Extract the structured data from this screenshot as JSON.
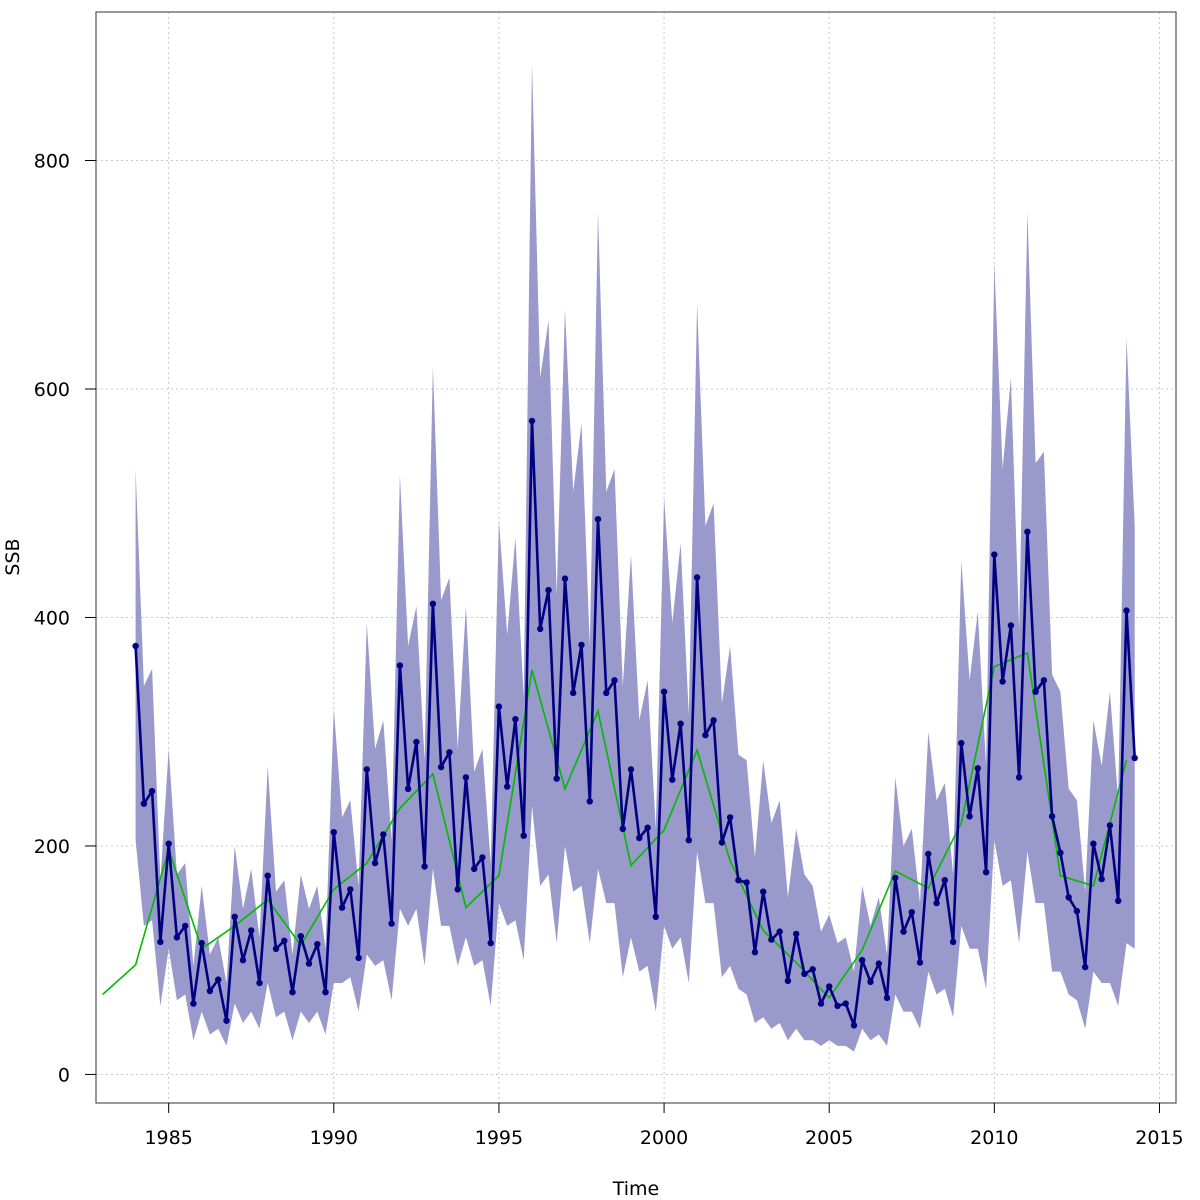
{
  "chart_data": {
    "type": "line",
    "title": "",
    "xlabel": "Time",
    "ylabel": "SSB",
    "xlim": [
      1982.8,
      2015.5
    ],
    "ylim": [
      -25,
      930
    ],
    "grid": true,
    "legend": "none",
    "x_ticks": [
      "1985",
      "1990",
      "1995",
      "2000",
      "2005",
      "2010",
      "2015"
    ],
    "y_ticks": [
      "0",
      "200",
      "400",
      "600",
      "800"
    ],
    "colors": {
      "estimate": "#000080",
      "band": "#9999cc",
      "annual": "#00bb00",
      "grid": "#c8c8c8",
      "frame": "#555555"
    },
    "series": [
      {
        "kind": "confidence-band",
        "x": [
          1984.0,
          1984.25,
          1984.5,
          1984.75,
          1985.0,
          1985.25,
          1985.5,
          1985.75,
          1986.0,
          1986.25,
          1986.5,
          1986.75,
          1987.0,
          1987.25,
          1987.5,
          1987.75,
          1988.0,
          1988.25,
          1988.5,
          1988.75,
          1989.0,
          1989.25,
          1989.5,
          1989.75,
          1990.0,
          1990.25,
          1990.5,
          1990.75,
          1991.0,
          1991.25,
          1991.5,
          1991.75,
          1992.0,
          1992.25,
          1992.5,
          1992.75,
          1993.0,
          1993.25,
          1993.5,
          1993.75,
          1994.0,
          1994.25,
          1994.5,
          1994.75,
          1995.0,
          1995.25,
          1995.5,
          1995.75,
          1996.0,
          1996.25,
          1996.5,
          1996.75,
          1997.0,
          1997.25,
          1997.5,
          1997.75,
          1998.0,
          1998.25,
          1998.5,
          1998.75,
          1999.0,
          1999.25,
          1999.5,
          1999.75,
          2000.0,
          2000.25,
          2000.5,
          2000.75,
          2001.0,
          2001.25,
          2001.5,
          2001.75,
          2002.0,
          2002.25,
          2002.5,
          2002.75,
          2003.0,
          2003.25,
          2003.5,
          2003.75,
          2004.0,
          2004.25,
          2004.5,
          2004.75,
          2005.0,
          2005.25,
          2005.5,
          2005.75,
          2006.0,
          2006.25,
          2006.5,
          2006.75,
          2007.0,
          2007.25,
          2007.5,
          2007.75,
          2008.0,
          2008.25,
          2008.5,
          2008.75,
          2009.0,
          2009.25,
          2009.5,
          2009.75,
          2010.0,
          2010.25,
          2010.5,
          2010.75,
          2011.0,
          2011.25,
          2011.5,
          2011.75,
          2012.0,
          2012.25,
          2012.5,
          2012.75,
          2013.0,
          2013.25,
          2013.5,
          2013.75,
          2014.0,
          2014.25
        ],
        "lower": [
          205,
          130,
          135,
          60,
          110,
          65,
          70,
          30,
          55,
          35,
          40,
          25,
          62,
          45,
          55,
          40,
          80,
          50,
          55,
          30,
          55,
          45,
          55,
          35,
          80,
          80,
          85,
          55,
          105,
          95,
          100,
          65,
          145,
          130,
          145,
          95,
          180,
          130,
          130,
          95,
          120,
          95,
          100,
          60,
          150,
          130,
          135,
          100,
          235,
          165,
          175,
          115,
          200,
          160,
          165,
          115,
          180,
          150,
          150,
          85,
          120,
          90,
          95,
          55,
          130,
          110,
          120,
          80,
          195,
          150,
          150,
          85,
          95,
          75,
          70,
          45,
          50,
          40,
          45,
          30,
          40,
          30,
          30,
          25,
          30,
          25,
          25,
          20,
          40,
          30,
          35,
          25,
          70,
          55,
          55,
          40,
          90,
          70,
          75,
          50,
          130,
          110,
          110,
          75,
          205,
          165,
          170,
          115,
          195,
          150,
          150,
          90,
          90,
          70,
          65,
          40,
          90,
          80,
          80,
          60,
          115,
          110
        ],
        "upper": [
          530,
          340,
          355,
          170,
          285,
          175,
          185,
          95,
          165,
          105,
          120,
          80,
          200,
          145,
          180,
          120,
          270,
          160,
          170,
          105,
          175,
          145,
          165,
          110,
          320,
          225,
          240,
          165,
          395,
          285,
          310,
          205,
          525,
          375,
          410,
          275,
          620,
          415,
          435,
          285,
          410,
          265,
          285,
          185,
          485,
          385,
          470,
          330,
          885,
          610,
          660,
          420,
          670,
          510,
          570,
          375,
          755,
          510,
          530,
          340,
          455,
          310,
          345,
          215,
          505,
          395,
          465,
          315,
          675,
          480,
          500,
          325,
          375,
          280,
          275,
          190,
          275,
          220,
          240,
          155,
          215,
          175,
          165,
          125,
          140,
          115,
          120,
          90,
          165,
          130,
          155,
          105,
          260,
          200,
          215,
          150,
          300,
          240,
          255,
          175,
          450,
          345,
          405,
          270,
          710,
          530,
          610,
          390,
          755,
          535,
          545,
          350,
          335,
          250,
          240,
          160,
          310,
          270,
          335,
          240,
          645,
          480
        ],
        "name": ""
      },
      {
        "kind": "quarterly-estimate",
        "x": [
          1984.0,
          1984.25,
          1984.5,
          1984.75,
          1985.0,
          1985.25,
          1985.5,
          1985.75,
          1986.0,
          1986.25,
          1986.5,
          1986.75,
          1987.0,
          1987.25,
          1987.5,
          1987.75,
          1988.0,
          1988.25,
          1988.5,
          1988.75,
          1989.0,
          1989.25,
          1989.5,
          1989.75,
          1990.0,
          1990.25,
          1990.5,
          1990.75,
          1991.0,
          1991.25,
          1991.5,
          1991.75,
          1992.0,
          1992.25,
          1992.5,
          1992.75,
          1993.0,
          1993.25,
          1993.5,
          1993.75,
          1994.0,
          1994.25,
          1994.5,
          1994.75,
          1995.0,
          1995.25,
          1995.5,
          1995.75,
          1996.0,
          1996.25,
          1996.5,
          1996.75,
          1997.0,
          1997.25,
          1997.5,
          1997.75,
          1998.0,
          1998.25,
          1998.5,
          1998.75,
          1999.0,
          1999.25,
          1999.5,
          1999.75,
          2000.0,
          2000.25,
          2000.5,
          2000.75,
          2001.0,
          2001.25,
          2001.5,
          2001.75,
          2002.0,
          2002.25,
          2002.5,
          2002.75,
          2003.0,
          2003.25,
          2003.5,
          2003.75,
          2004.0,
          2004.25,
          2004.5,
          2004.75,
          2005.0,
          2005.25,
          2005.5,
          2005.75,
          2006.0,
          2006.25,
          2006.5,
          2006.75,
          2007.0,
          2007.25,
          2007.5,
          2007.75,
          2008.0,
          2008.25,
          2008.5,
          2008.75,
          2009.0,
          2009.25,
          2009.5,
          2009.75,
          2010.0,
          2010.25,
          2010.5,
          2010.75,
          2011.0,
          2011.25,
          2011.5,
          2011.75,
          2012.0,
          2012.25,
          2012.5,
          2012.75,
          2013.0,
          2013.25,
          2013.5,
          2013.75,
          2014.0,
          2014.25
        ],
        "y": [
          375,
          237,
          248,
          116,
          202,
          120,
          130,
          62,
          115,
          73,
          83,
          47,
          138,
          100,
          126,
          80,
          174,
          110,
          117,
          72,
          121,
          97,
          114,
          72,
          212,
          146,
          162,
          102,
          267,
          185,
          210,
          132,
          358,
          250,
          291,
          182,
          412,
          269,
          282,
          162,
          260,
          180,
          190,
          115,
          322,
          252,
          311,
          209,
          572,
          390,
          424,
          259,
          434,
          334,
          376,
          239,
          486,
          334,
          345,
          215,
          267,
          207,
          216,
          138,
          335,
          258,
          307,
          205,
          435,
          297,
          310,
          203,
          225,
          170,
          168,
          107,
          160,
          118,
          125,
          82,
          123,
          88,
          92,
          62,
          77,
          60,
          62,
          43,
          100,
          81,
          97,
          67,
          172,
          125,
          142,
          98,
          193,
          150,
          170,
          116,
          290,
          226,
          268,
          177,
          455,
          344,
          393,
          260,
          475,
          335,
          345,
          226,
          194,
          155,
          143,
          94,
          202,
          171,
          218,
          152,
          406,
          277
        ],
        "name": ""
      },
      {
        "kind": "annual",
        "x": [
          1983,
          1984,
          1985,
          1986,
          1987,
          1988,
          1989,
          1990,
          1991,
          1992,
          1993,
          1994,
          1995,
          1996,
          1997,
          1998,
          1999,
          2000,
          2001,
          2002,
          2003,
          2004,
          2005,
          2006,
          2007,
          2008,
          2009,
          2010,
          2011,
          2012,
          2013,
          2014
        ],
        "y": [
          70,
          96,
          197,
          110,
          130,
          153,
          113,
          162,
          185,
          233,
          263,
          146,
          174,
          354,
          250,
          318,
          183,
          214,
          284,
          187,
          126,
          98,
          67,
          109,
          178,
          163,
          220,
          357,
          369,
          174,
          165,
          275
        ],
        "name": ""
      }
    ]
  }
}
